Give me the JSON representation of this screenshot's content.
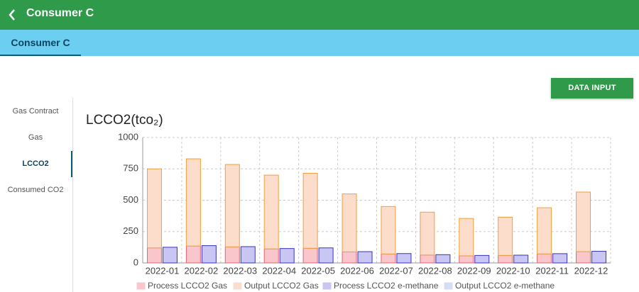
{
  "header": {
    "title": "Consumer C"
  },
  "tab": {
    "label": "Consumer C"
  },
  "button": {
    "label": "DATA INPUT"
  },
  "sidebar": {
    "items": [
      "Gas Contract",
      "Gas",
      "LCCO2",
      "Consumed CO2"
    ],
    "active": 2
  },
  "chart_data": {
    "type": "bar",
    "title": "LCCO2(tco₂)",
    "categories": [
      "2022-01",
      "2022-02",
      "2022-03",
      "2022-04",
      "2022-05",
      "2022-06",
      "2022-07",
      "2022-08",
      "2022-09",
      "2022-10",
      "2022-11",
      "2022-12"
    ],
    "stacked": true,
    "series": [
      {
        "name": "Process LCCO2 Gas",
        "color": "#f8c6cb",
        "stroke": "#e5636e",
        "stack": 0,
        "values": [
          120,
          135,
          128,
          112,
          117,
          88,
          72,
          63,
          57,
          60,
          72,
          90
        ]
      },
      {
        "name": "Output LCCO2 Gas",
        "color": "#fcdccb",
        "stroke": "#f0a03c",
        "stack": 0,
        "values": [
          630,
          695,
          657,
          588,
          598,
          462,
          378,
          342,
          298,
          305,
          368,
          475
        ]
      },
      {
        "name": "Process LCCO2 e-methane",
        "color": "#c9c6f3",
        "stroke": "#3534c4",
        "stack": 1,
        "values": [
          125,
          138,
          130,
          115,
          120,
          90,
          75,
          66,
          60,
          62,
          74,
          93
        ]
      },
      {
        "name": "Output LCCO2 e-methane",
        "color": "#d5dcf8",
        "stroke": "#9aa8f0",
        "stack": 1,
        "values": [
          0,
          0,
          0,
          0,
          0,
          0,
          0,
          0,
          0,
          0,
          0,
          0
        ]
      }
    ],
    "ylim": [
      0,
      1000
    ],
    "yticks": [
      0,
      250,
      500,
      750,
      1000
    ],
    "grid": true
  }
}
